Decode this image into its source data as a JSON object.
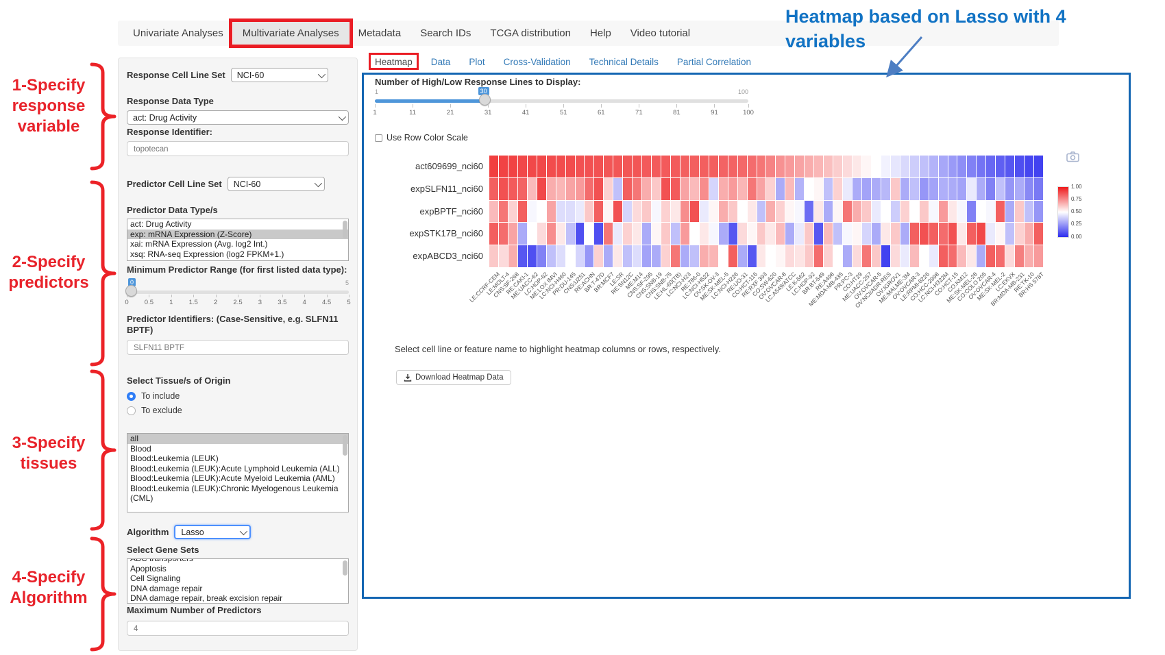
{
  "nav": {
    "items": [
      "Univariate Analyses",
      "Multivariate Analyses",
      "Metadata",
      "Search IDs",
      "TCGA distribution",
      "Help",
      "Video tutorial"
    ],
    "active": "Multivariate Analyses"
  },
  "annotations": {
    "steps": [
      "1-Specify response variable",
      "2-Specify predictors",
      "3-Specify tissues",
      "4-Specify Algorithm"
    ],
    "heatmap_note": "Heatmap based on Lasso with 4 variables"
  },
  "sidebar": {
    "response_cell_line_set": {
      "label": "Response Cell Line Set",
      "value": "NCI-60"
    },
    "response_data_type": {
      "label": "Response Data Type",
      "value": "act: Drug Activity"
    },
    "response_identifier": {
      "label": "Response Identifier:",
      "value": "topotecan"
    },
    "predictor_cell_line_set": {
      "label": "Predictor Cell Line Set",
      "value": "NCI-60"
    },
    "predictor_data_types": {
      "label": "Predictor Data Type/s",
      "options": [
        "act: Drug Activity",
        "exp: mRNA Expression (Z-Score)",
        "xai: mRNA Expression (Avg. log2 Int.)",
        "xsq: RNA-seq Expression (log2 FPKM+1.)"
      ],
      "selected": "exp: mRNA Expression (Z-Score)"
    },
    "min_predictor_range": {
      "label": "Minimum Predictor Range (for first listed data type):",
      "value": "0",
      "max_label": "5",
      "ticks": [
        "0",
        "0.5",
        "1",
        "1.5",
        "2",
        "2.5",
        "3",
        "3.5",
        "4",
        "4.5",
        "5"
      ]
    },
    "predictor_identifiers": {
      "label": "Predictor Identifiers: (Case-Sensitive, e.g. SLFN11 BPTF)",
      "value": "SLFN11 BPTF"
    },
    "tissues": {
      "label": "Select Tissue/s of Origin",
      "radio_include": "To include",
      "radio_exclude": "To exclude",
      "include_selected": true,
      "options": [
        "all",
        "Blood",
        "Blood:Leukemia (LEUK)",
        "Blood:Leukemia (LEUK):Acute Lymphoid Leukemia (ALL)",
        "Blood:Leukemia (LEUK):Acute Myeloid Leukemia (AML)",
        "Blood:Leukemia (LEUK):Chronic Myelogenous Leukemia (CML)"
      ],
      "selected": "all"
    },
    "algorithm": {
      "label": "Algorithm",
      "value": "Lasso"
    },
    "gene_sets": {
      "label": "Select Gene Sets",
      "options": [
        "ABC transporters",
        "Apoptosis",
        "Cell Signaling",
        "DNA damage repair",
        "DNA damage repair, break excision repair"
      ]
    },
    "max_predictors": {
      "label": "Maximum Number of Predictors",
      "value": "4"
    }
  },
  "main": {
    "tabs": [
      "Heatmap",
      "Data",
      "Plot",
      "Cross-Validation",
      "Technical Details",
      "Partial Correlation"
    ],
    "active_tab": "Heatmap",
    "display_slider": {
      "label": "Number of High/Low Response Lines to Display:",
      "min": "1",
      "max": "100",
      "value": "30",
      "ticks": [
        "1",
        "11",
        "21",
        "31",
        "41",
        "51",
        "61",
        "71",
        "81",
        "91",
        "100"
      ]
    },
    "row_color_scale_label": "Use Row Color Scale",
    "hint": "Select cell line or feature name to highlight heatmap columns or rows, respectively.",
    "download_button": "Download Heatmap Data",
    "icons": {
      "camera": "camera-icon",
      "download": "download-icon"
    }
  },
  "colors": {
    "annotation_red": "#ea1c24",
    "annotation_blue": "#1273c4",
    "panel_border_blue": "#1466b2",
    "link_blue": "#337ab7",
    "slider_blue": "#4e96da",
    "heat_high": "#ee1a1b",
    "heat_mid": "#ffffff",
    "heat_low": "#2d2dee"
  },
  "chart_data": {
    "type": "heatmap",
    "title": "",
    "x_tick_rotation": -45,
    "legend_position": "right",
    "colorbar_ticks": [
      "1.00",
      "0.75",
      "0.50",
      "0.25",
      "0.00"
    ],
    "rows": [
      "act609699_nci60",
      "expSLFN11_nci60",
      "expBPTF_nci60",
      "expSTK17B_nci60",
      "expABCD3_nci60"
    ],
    "columns": [
      "LE:CCRF-CEM",
      "LE:MOLT-4",
      "CNS:SF-268",
      "RE:CAKI-1",
      "ME:UACC-62",
      "LC:HOP-62",
      "ME:LOX IMVI",
      "LC:NCI-H460",
      "PR:DU-145",
      "CNS:U251",
      "RE:ACHN",
      "BR:T-47D",
      "BR:MCF7",
      "LE:SR",
      "RE:SN12C",
      "ME:M14",
      "CNS:SF-295",
      "CNS:SNB-19",
      "CNS:SNB-75",
      "LE:HL-60(TB)",
      "LC:NCI-H23",
      "RE:786-0",
      "LC:NCI-H522",
      "OV:SK-OV-3",
      "ME:SK-MEL-5",
      "LC:NCI-H226",
      "RE:UO-31",
      "CO:HCT-116",
      "RE:RXF 393",
      "CO:SW-620",
      "OV:OVCAR-8",
      "LC:A549/ATCC",
      "LE:K-562",
      "LC:HOP-92",
      "BR:BT-549",
      "RE:A498",
      "ME:MDA-MB-435",
      "PR:PC-3",
      "CO:HT29",
      "ME:UACC-257",
      "OV:OVCAR-5",
      "OV:NCI/ADR-RES",
      "OV:IGROV1",
      "ME:MALME-3M",
      "OV:OVCAR-3",
      "LE:RPMI-8226",
      "CO:HCC-2998",
      "LC:NCI-H322M",
      "CO:HCT-15",
      "CO:KM12",
      "ME:SK-MEL-28",
      "CO:COLO 205",
      "OV:OVCAR-4",
      "ME:SK-MEL-2",
      "LC:EKVX",
      "BR:MDA-MB-231",
      "RE:TK-10",
      "BR:HS 578T"
    ],
    "values": [
      [
        0.92,
        0.91,
        0.91,
        0.9,
        0.9,
        0.9,
        0.89,
        0.89,
        0.89,
        0.88,
        0.88,
        0.88,
        0.87,
        0.87,
        0.87,
        0.87,
        0.86,
        0.86,
        0.86,
        0.86,
        0.85,
        0.85,
        0.85,
        0.85,
        0.84,
        0.84,
        0.83,
        0.82,
        0.8,
        0.77,
        0.74,
        0.72,
        0.7,
        0.68,
        0.66,
        0.64,
        0.61,
        0.58,
        0.55,
        0.52,
        0.5,
        0.47,
        0.44,
        0.41,
        0.38,
        0.35,
        0.32,
        0.29,
        0.26,
        0.23,
        0.2,
        0.17,
        0.14,
        0.12,
        0.1,
        0.08,
        0.06,
        0.05
      ],
      [
        0.85,
        0.88,
        0.86,
        0.84,
        0.65,
        0.9,
        0.68,
        0.66,
        0.7,
        0.72,
        0.82,
        0.88,
        0.6,
        0.35,
        0.85,
        0.8,
        0.68,
        0.62,
        0.88,
        0.86,
        0.7,
        0.65,
        0.75,
        0.4,
        0.68,
        0.72,
        0.66,
        0.8,
        0.7,
        0.6,
        0.3,
        0.65,
        0.32,
        0.5,
        0.52,
        0.35,
        0.6,
        0.45,
        0.3,
        0.28,
        0.3,
        0.33,
        0.62,
        0.3,
        0.35,
        0.25,
        0.28,
        0.31,
        0.3,
        0.28,
        0.45,
        0.3,
        0.2,
        0.35,
        0.25,
        0.3,
        0.22,
        0.18
      ],
      [
        0.65,
        0.8,
        0.6,
        0.85,
        0.48,
        0.5,
        0.7,
        0.42,
        0.42,
        0.45,
        0.62,
        0.85,
        0.52,
        0.88,
        0.4,
        0.58,
        0.62,
        0.48,
        0.6,
        0.55,
        0.75,
        0.88,
        0.45,
        0.52,
        0.68,
        0.62,
        0.5,
        0.55,
        0.35,
        0.68,
        0.6,
        0.52,
        0.48,
        0.15,
        0.55,
        0.3,
        0.52,
        0.8,
        0.68,
        0.62,
        0.45,
        0.5,
        0.38,
        0.6,
        0.5,
        0.62,
        0.48,
        0.72,
        0.55,
        0.48,
        0.2,
        0.5,
        0.48,
        0.85,
        0.3,
        0.62,
        0.35,
        0.25
      ],
      [
        0.85,
        0.82,
        0.7,
        0.3,
        0.5,
        0.58,
        0.75,
        0.55,
        0.35,
        0.08,
        0.5,
        0.08,
        0.8,
        0.45,
        0.6,
        0.55,
        0.3,
        0.52,
        0.62,
        0.35,
        0.72,
        0.5,
        0.55,
        0.48,
        0.3,
        0.1,
        0.58,
        0.52,
        0.62,
        0.55,
        0.65,
        0.3,
        0.45,
        0.62,
        0.1,
        0.65,
        0.35,
        0.48,
        0.52,
        0.4,
        0.3,
        0.55,
        0.62,
        0.3,
        0.85,
        0.88,
        0.85,
        0.82,
        0.88,
        0.55,
        0.85,
        0.9,
        0.45,
        0.52,
        0.35,
        0.6,
        0.68,
        0.85
      ],
      [
        0.62,
        0.58,
        0.68,
        0.1,
        0.08,
        0.2,
        0.35,
        0.42,
        0.5,
        0.4,
        0.25,
        0.6,
        0.3,
        0.55,
        0.35,
        0.42,
        0.28,
        0.3,
        0.6,
        0.8,
        0.3,
        0.35,
        0.68,
        0.66,
        0.5,
        0.85,
        0.3,
        0.1,
        0.55,
        0.5,
        0.52,
        0.58,
        0.56,
        0.62,
        0.82,
        0.6,
        0.5,
        0.3,
        0.58,
        0.8,
        0.62,
        0.05,
        0.58,
        0.45,
        0.65,
        0.5,
        0.45,
        0.85,
        0.82,
        0.65,
        0.55,
        0.3,
        0.85,
        0.82,
        0.58,
        0.78,
        0.68,
        0.72
      ]
    ]
  }
}
